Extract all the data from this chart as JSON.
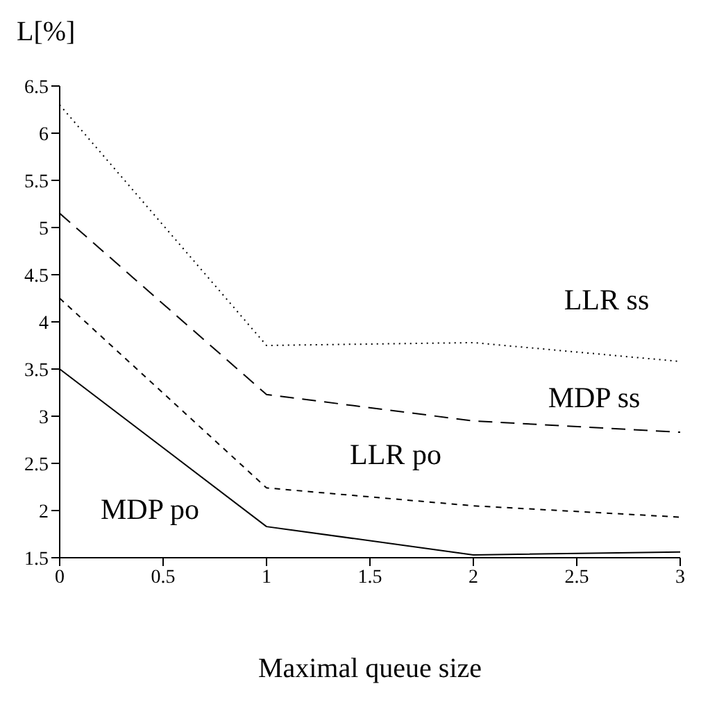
{
  "chart_data": {
    "type": "line",
    "ylabel": "L[%]",
    "xlabel": "Maximal queue size",
    "x": [
      0,
      1,
      2,
      3
    ],
    "series": [
      {
        "name": "LLR ss",
        "color": "#000000",
        "line_style": "dotted",
        "values": [
          6.3,
          3.75,
          3.78,
          3.58
        ]
      },
      {
        "name": "MDP ss",
        "color": "#000000",
        "line_style": "dashed",
        "values": [
          5.15,
          3.23,
          2.95,
          2.83
        ]
      },
      {
        "name": "LLR po",
        "color": "#000000",
        "line_style": "dashed",
        "values": [
          4.25,
          2.24,
          2.05,
          1.93
        ]
      },
      {
        "name": "MDP po",
        "color": "#000000",
        "line_style": "solid",
        "values": [
          3.5,
          1.83,
          1.53,
          1.56
        ]
      }
    ],
    "xlim": [
      0,
      3
    ],
    "xticks": [
      0,
      0.5,
      1,
      1.5,
      2,
      2.5,
      3
    ],
    "ylim": [
      1.5,
      6.5
    ],
    "yticks": [
      1.5,
      2,
      2.5,
      3,
      3.5,
      4,
      4.5,
      5,
      5.5,
      6,
      6.5
    ],
    "grid": false,
    "legend": false,
    "marker": "none"
  }
}
